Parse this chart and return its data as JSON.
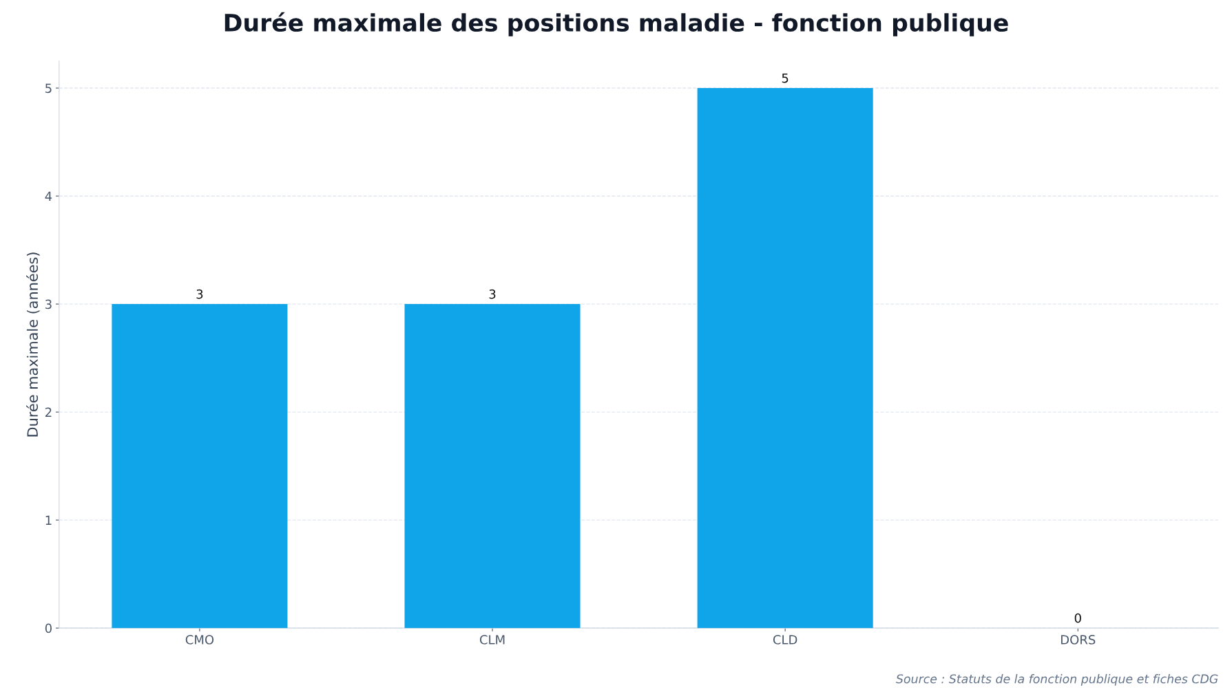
{
  "chart_data": {
    "type": "bar",
    "title": "Durée maximale des positions maladie - fonction publique",
    "ylabel": "Durée maximale (années)",
    "categories": [
      "CMO",
      "CLM",
      "CLD",
      "DORS"
    ],
    "values": [
      3,
      3,
      5,
      0
    ],
    "color": "#10a5e8",
    "ylim": [
      0,
      5.25
    ],
    "yticks": [
      0,
      1,
      2,
      3,
      4,
      5
    ],
    "grid": "y",
    "data_labels": true,
    "annotations": [
      "Source : Statuts de la fonction publique et fiches CDG"
    ]
  }
}
